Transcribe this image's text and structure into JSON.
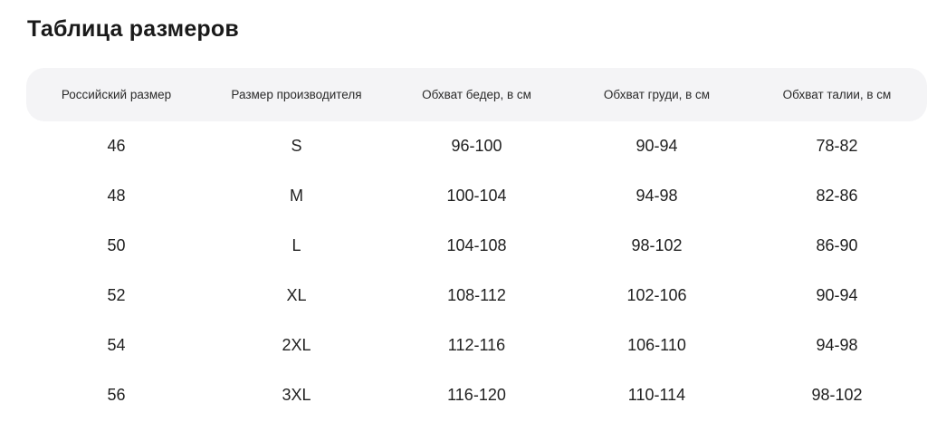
{
  "title": "Таблица размеров",
  "table": {
    "headers": [
      "Российский размер",
      "Размер производителя",
      "Обхват бедер, в см",
      "Обхват груди, в см",
      "Обхват талии, в см"
    ],
    "rows": [
      [
        "46",
        "S",
        "96-100",
        "90-94",
        "78-82"
      ],
      [
        "48",
        "M",
        "100-104",
        "94-98",
        "82-86"
      ],
      [
        "50",
        "L",
        "104-108",
        "98-102",
        "86-90"
      ],
      [
        "52",
        "XL",
        "108-112",
        "102-106",
        "90-94"
      ],
      [
        "54",
        "2XL",
        "112-116",
        "106-110",
        "94-98"
      ],
      [
        "56",
        "3XL",
        "116-120",
        "110-114",
        "98-102"
      ]
    ]
  }
}
